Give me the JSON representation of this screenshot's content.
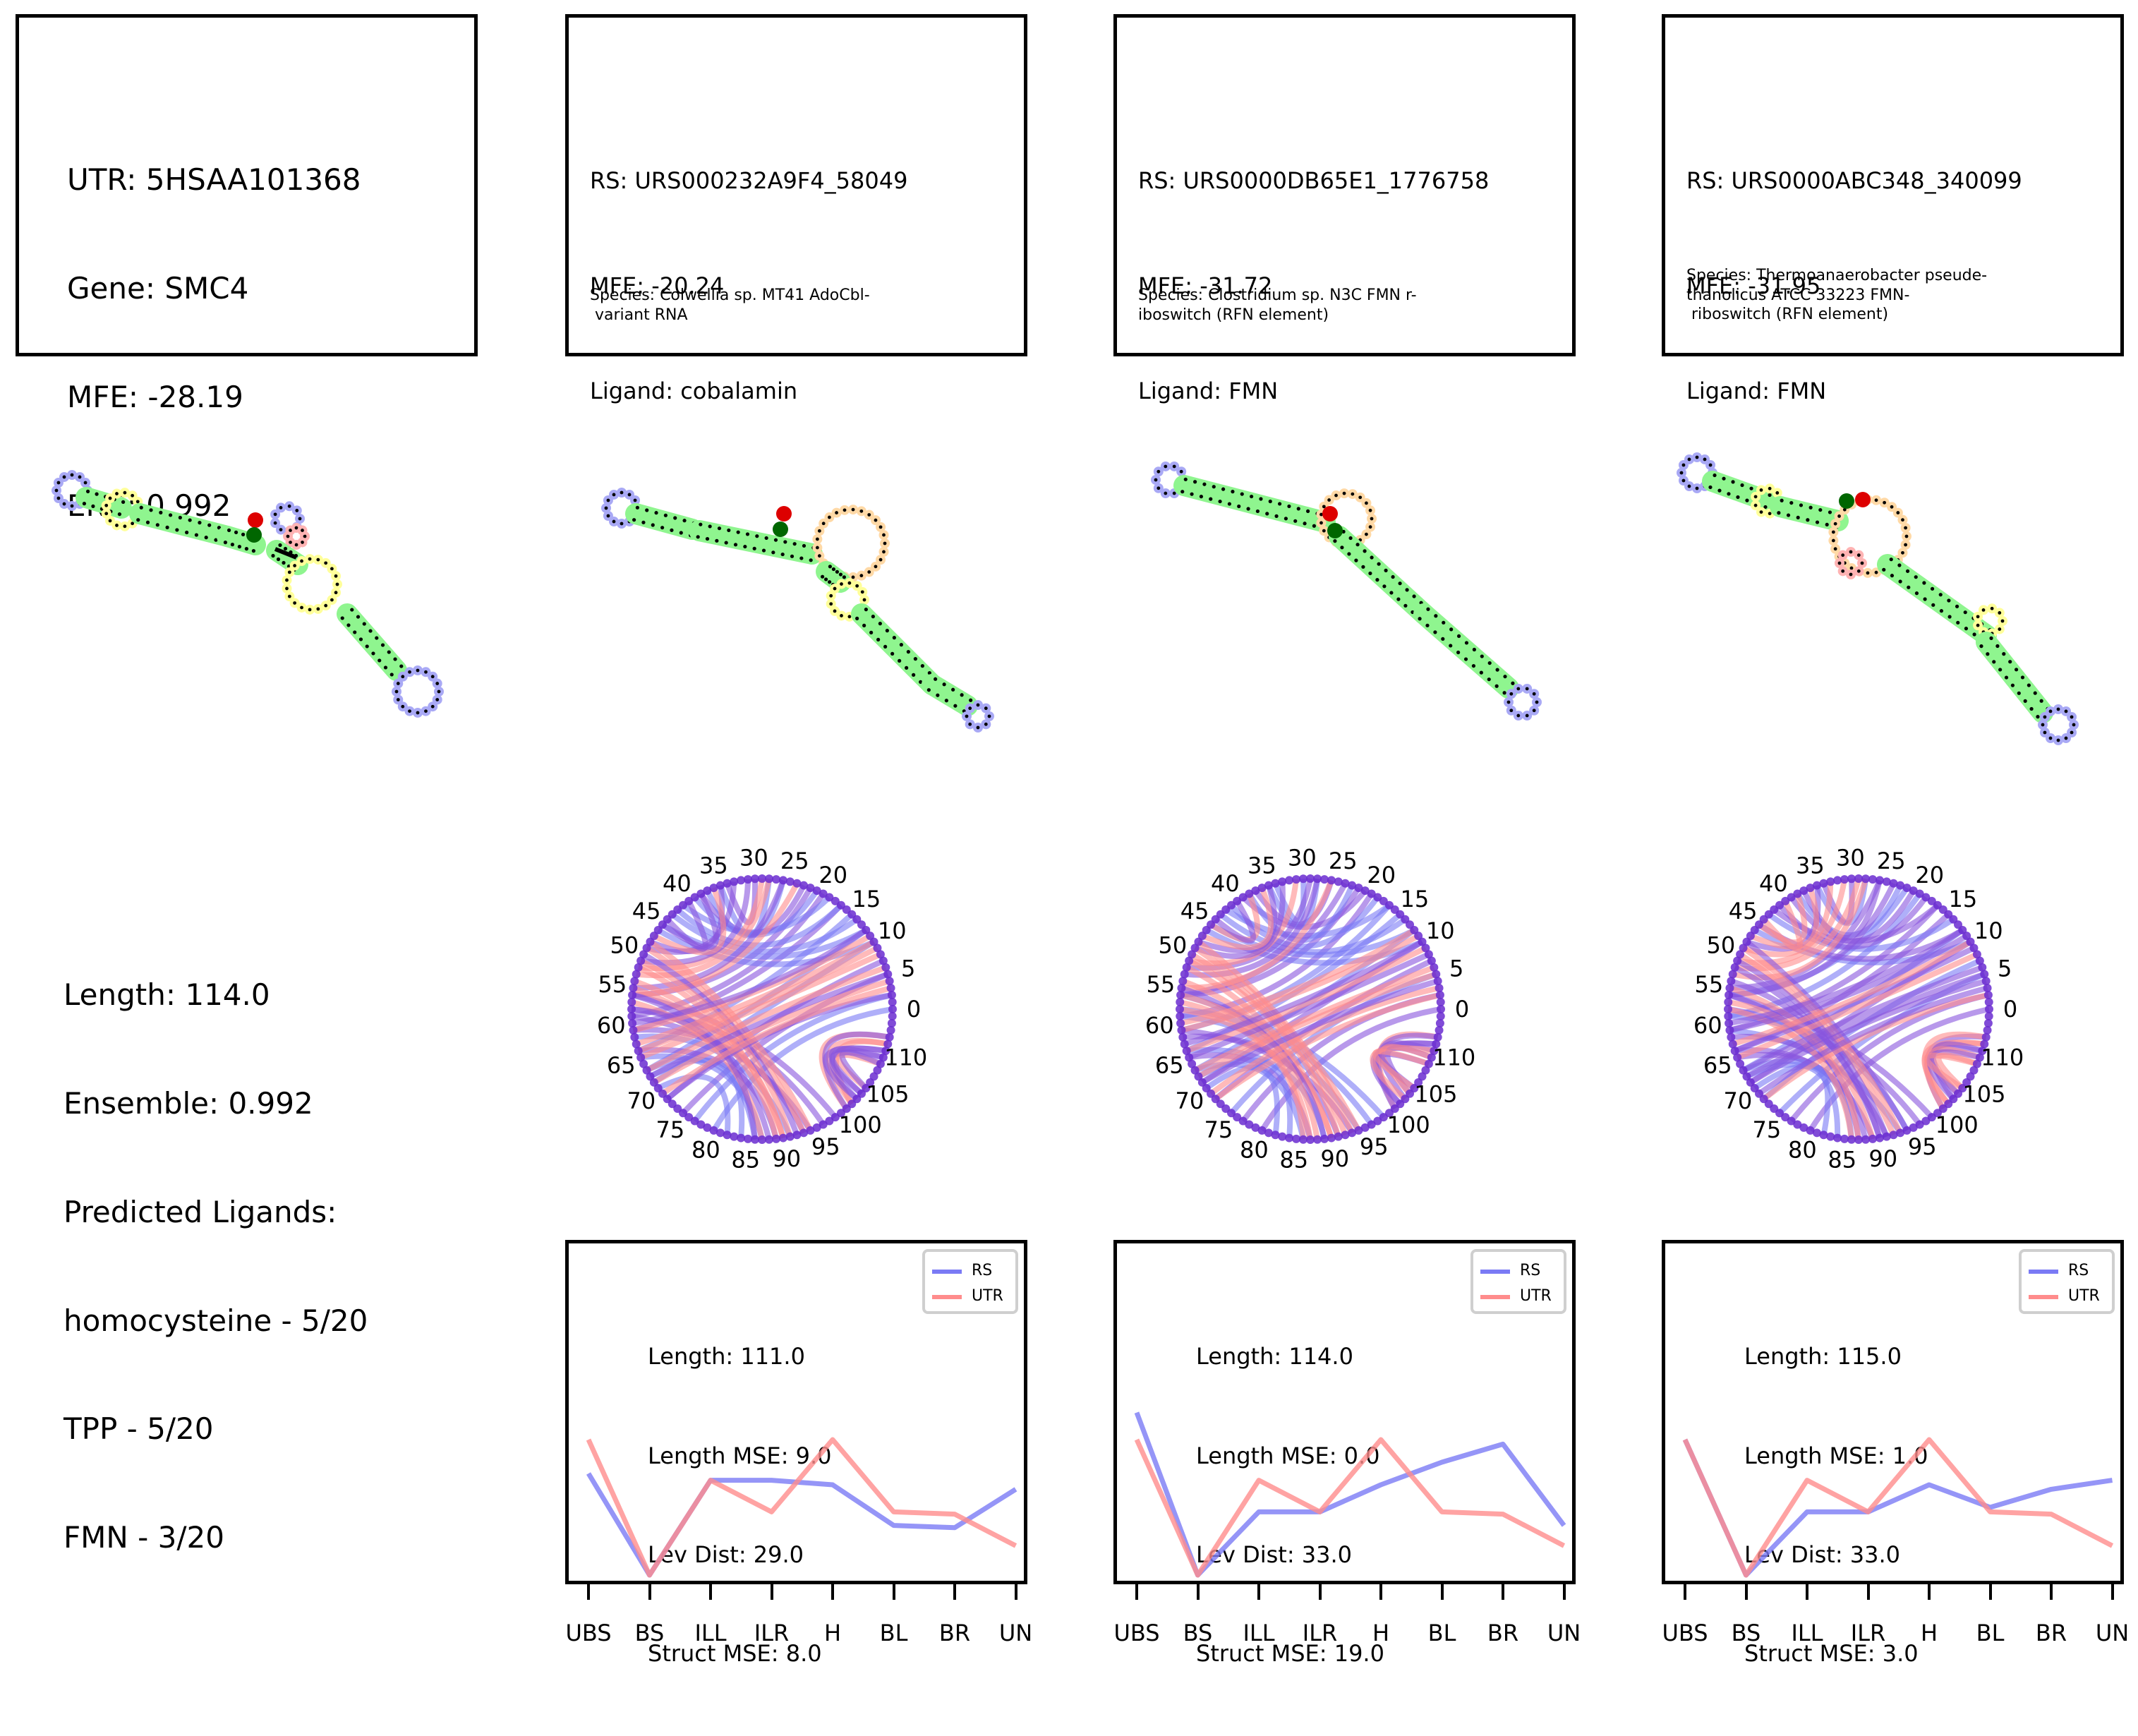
{
  "utr_panel": {
    "info": [
      "UTR: 5HSAA101368",
      "Gene: SMC4",
      "MFE: -28.19",
      "ENS: 0.992"
    ],
    "stats": [
      "Length: 114.0",
      "Ensemble: 0.992",
      "Predicted Ligands:",
      "homocysteine - 5/20",
      "TPP - 5/20",
      "FMN - 3/20"
    ]
  },
  "rs_panels": [
    {
      "rs": "RS: URS000232A9F4_58049",
      "mfe": "MFE: -20.24",
      "ligand": "Ligand: cobalamin",
      "species": "Species: Colwellia sp. MT41 AdoCbl-\n variant RNA",
      "length": "Length: 111.0",
      "length_mse": "Length MSE: 9.0",
      "lev_dist": "Lev Dist: 29.0",
      "struct_mse": "Struct MSE: 8.0"
    },
    {
      "rs": "RS: URS0000DB65E1_1776758",
      "mfe": "MFE: -31.72",
      "ligand": "Ligand: FMN",
      "species": "Species: Clostridium sp. N3C FMN r-\niboswitch (RFN element)",
      "length": "Length: 114.0",
      "length_mse": "Length MSE: 0.0",
      "lev_dist": "Lev Dist: 33.0",
      "struct_mse": "Struct MSE: 19.0"
    },
    {
      "rs": "RS: URS0000ABC348_340099",
      "mfe": "MFE: -31.95",
      "ligand": "Ligand: FMN",
      "species": "Species: Thermoanaerobacter pseude-\nthanolicus ATCC 33223 FMN-\n riboswitch (RFN element)",
      "length": "Length: 115.0",
      "length_mse": "Length MSE: 1.0",
      "lev_dist": "Lev Dist: 33.0",
      "struct_mse": "Struct MSE: 3.0"
    }
  ],
  "legend": {
    "rs_label": "RS",
    "utr_label": "UTR"
  },
  "arc_tick_labels": [
    "0",
    "5",
    "10",
    "15",
    "20",
    "25",
    "30",
    "35",
    "40",
    "45",
    "50",
    "55",
    "60",
    "65",
    "70",
    "75",
    "80",
    "85",
    "90",
    "95",
    "100",
    "105",
    "110"
  ],
  "colors": {
    "rs": "#7a7af5",
    "utr": "#ff8c8c",
    "stem": "#8ff58f",
    "hairpin": "#a9a9f5",
    "interior": "#ffff9a",
    "multi": "#ffd9a6",
    "bulge": "#ffb3b3",
    "start": "#dd0000",
    "end": "#006600"
  },
  "chart_data": [
    {
      "type": "line",
      "categories": [
        "UBS",
        "BS",
        "ILL",
        "ILR",
        "H",
        "BL",
        "BR",
        "UN"
      ],
      "series": [
        {
          "name": "RS",
          "values": [
            0.45,
            0.0,
            0.42,
            0.42,
            0.4,
            0.22,
            0.21,
            0.38
          ]
        },
        {
          "name": "UTR",
          "values": [
            0.6,
            0.0,
            0.42,
            0.28,
            0.6,
            0.28,
            0.27,
            0.13
          ]
        }
      ],
      "legend": "top-right"
    },
    {
      "type": "line",
      "categories": [
        "UBS",
        "BS",
        "ILL",
        "ILR",
        "H",
        "BL",
        "BR",
        "UN"
      ],
      "series": [
        {
          "name": "RS",
          "values": [
            0.72,
            0.0,
            0.28,
            0.28,
            0.4,
            0.5,
            0.58,
            0.22
          ]
        },
        {
          "name": "UTR",
          "values": [
            0.6,
            0.0,
            0.42,
            0.28,
            0.6,
            0.28,
            0.27,
            0.13
          ]
        }
      ],
      "legend": "top-right"
    },
    {
      "type": "line",
      "categories": [
        "UBS",
        "BS",
        "ILL",
        "ILR",
        "H",
        "BL",
        "BR",
        "UN"
      ],
      "series": [
        {
          "name": "RS",
          "values": [
            0.6,
            0.0,
            0.28,
            0.28,
            0.4,
            0.3,
            0.38,
            0.42
          ]
        },
        {
          "name": "UTR",
          "values": [
            0.6,
            0.0,
            0.42,
            0.28,
            0.6,
            0.28,
            0.27,
            0.13
          ]
        }
      ],
      "legend": "top-right"
    }
  ]
}
